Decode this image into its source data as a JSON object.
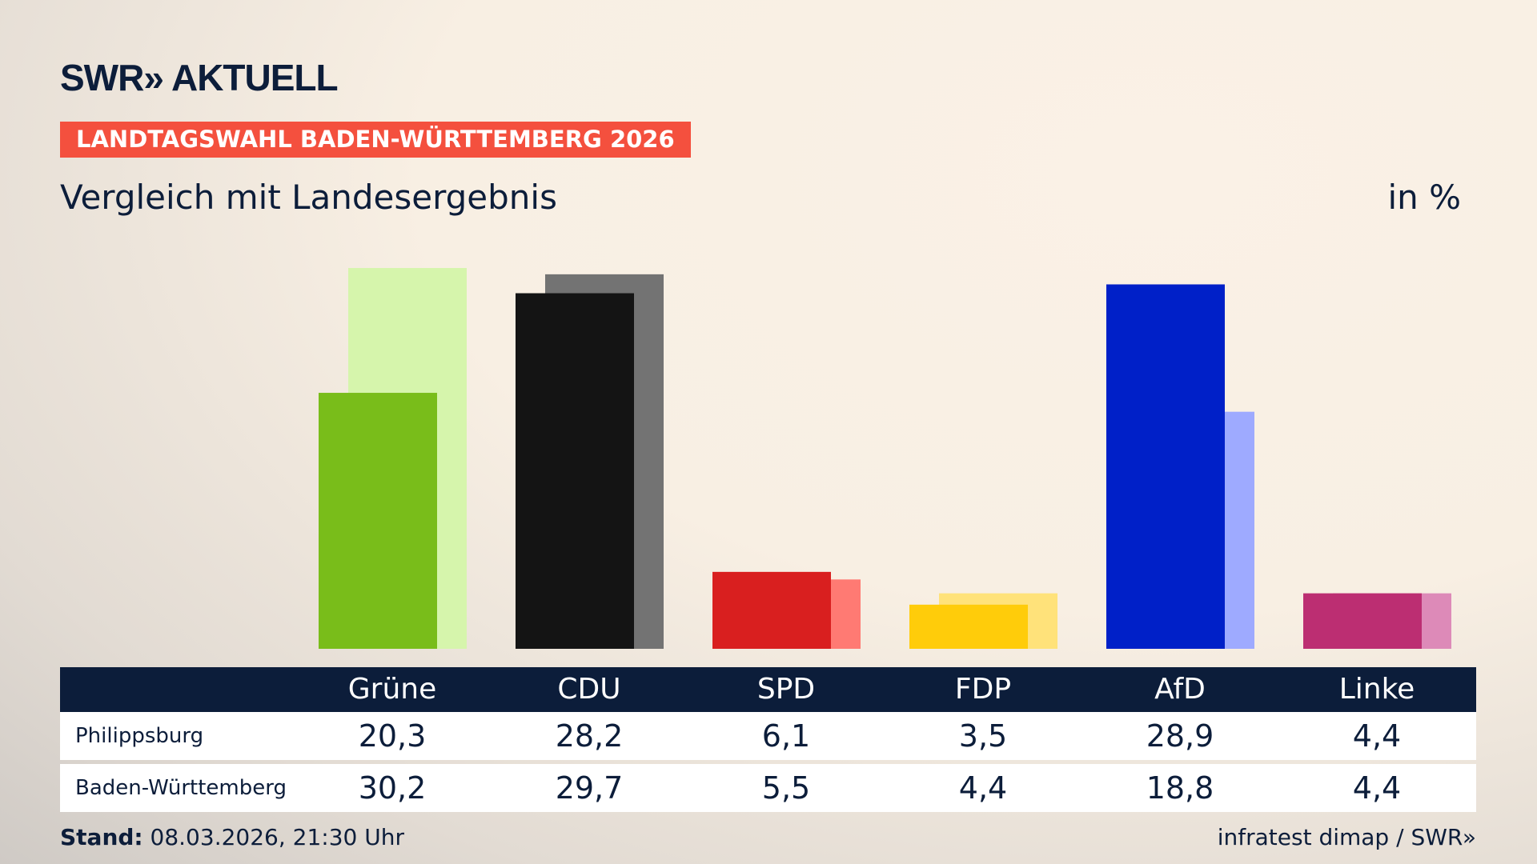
{
  "header": {
    "logo": "SWR» AKTUELL",
    "banner": "LANDTAGSWAHL BADEN-WÜRTTEMBERG 2026",
    "subtitle": "Vergleich mit Landesergebnis",
    "unit": "in %"
  },
  "chart_data": {
    "type": "bar",
    "categories": [
      "Grüne",
      "CDU",
      "SPD",
      "FDP",
      "AfD",
      "Linke"
    ],
    "series": [
      {
        "name": "Philippsburg",
        "values": [
          20.3,
          28.2,
          6.1,
          3.5,
          28.9,
          4.4
        ],
        "colors": [
          "#79bd1a",
          "#141414",
          "#d91f1f",
          "#ffcc0a",
          "#0020c8",
          "#bc2e72"
        ]
      },
      {
        "name": "Baden-Württemberg",
        "values": [
          30.2,
          29.7,
          5.5,
          4.4,
          18.8,
          4.4
        ],
        "colors": [
          "#d6f5ac",
          "#737373",
          "#ff7a73",
          "#ffe27a",
          "#9eaaff",
          "#dd8ab8"
        ]
      }
    ],
    "ylim": [
      0,
      30.2
    ]
  },
  "table": {
    "headers": [
      "Grüne",
      "CDU",
      "SPD",
      "FDP",
      "AfD",
      "Linke"
    ],
    "rows": [
      {
        "label": "Philippsburg",
        "values": [
          "20,3",
          "28,2",
          "6,1",
          "3,5",
          "28,9",
          "4,4"
        ]
      },
      {
        "label": "Baden-Württemberg",
        "values": [
          "30,2",
          "29,7",
          "5,5",
          "4,4",
          "18,8",
          "4,4"
        ]
      }
    ]
  },
  "footer": {
    "stand_label": "Stand:",
    "stand_value": "08.03.2026, 21:30 Uhr",
    "source": "infratest dimap / SWR»"
  }
}
